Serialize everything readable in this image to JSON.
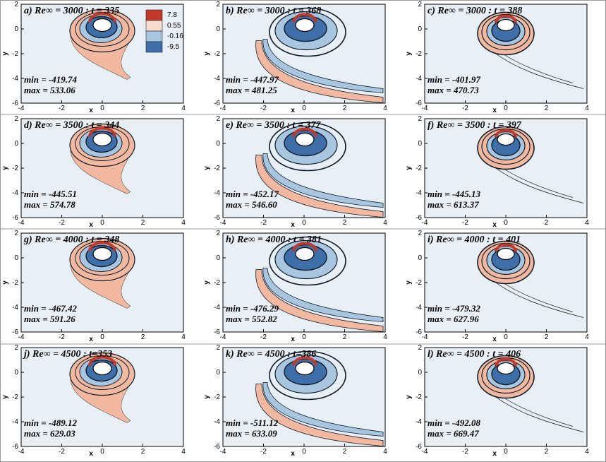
{
  "figure": {
    "legend": {
      "labels": [
        "7.8",
        "0.55",
        "-0.16",
        "-9.5"
      ]
    },
    "axis": {
      "xlabel": "x",
      "ylabel": "y"
    },
    "colors": {
      "background": "#e9f0f5",
      "red": "#c0392b",
      "lightred": "#f2b9a0",
      "blue": "#3f6fa8",
      "lightblue": "#a8c6e0",
      "dark": "#0d1b2a"
    }
  },
  "chart_data": {
    "type": "contour",
    "xticks": [
      "-4",
      "-2",
      "0",
      "2",
      "4"
    ],
    "yticks": [
      "2",
      "0",
      "-2",
      "-4",
      "-6"
    ],
    "xlim": [
      -4,
      4
    ],
    "ylim": [
      -6,
      2
    ],
    "panels": [
      {
        "title": "a) Re∞ = 3000 : t = 335",
        "min": "min = -419.74",
        "max": "max = 533.06",
        "style": "tail"
      },
      {
        "title": "b) Re∞ = 3000 : t = 368",
        "min": "min = -447.97",
        "max": "max = 481.25",
        "style": "swirl"
      },
      {
        "title": "c) Re∞ = 3000 : t = 388",
        "min": "min = -401.97",
        "max": "max = 470.73",
        "style": "rings"
      },
      {
        "title": "d) Re∞ = 3500 : t = 344",
        "min": "min = -445.51",
        "max": "max = 574.78",
        "style": "tail"
      },
      {
        "title": "e) Re∞ = 3500 : t = 377",
        "min": "min = -452.17",
        "max": "max = 546.60",
        "style": "swirl"
      },
      {
        "title": "f) Re∞ = 3500 : t = 397",
        "min": "min = -445.13",
        "max": "max = 613.37",
        "style": "rings"
      },
      {
        "title": "g) Re∞ = 4000 : t = 348",
        "min": "min = -467.42",
        "max": "max = 591.26",
        "style": "tail"
      },
      {
        "title": "h) Re∞ = 4000 : t = 381",
        "min": "min = -476.29",
        "max": "max = 552.82",
        "style": "swirl"
      },
      {
        "title": "i) Re∞ = 4000 : t = 401",
        "min": "min = -479.32",
        "max": "max = 627.96",
        "style": "rings"
      },
      {
        "title": "j) Re∞ = 4500 : t=353",
        "min": "min = -489.12",
        "max": "max = 629.03",
        "style": "tail"
      },
      {
        "title": "k) Re∞ = 4500 : t=386",
        "min": "min = -511.12",
        "max": "max = 633.09",
        "style": "swirl"
      },
      {
        "title": "l) Re∞ = 4500 : t = 406",
        "min": "min = -492.08",
        "max": "max = 669.47",
        "style": "rings"
      }
    ]
  }
}
